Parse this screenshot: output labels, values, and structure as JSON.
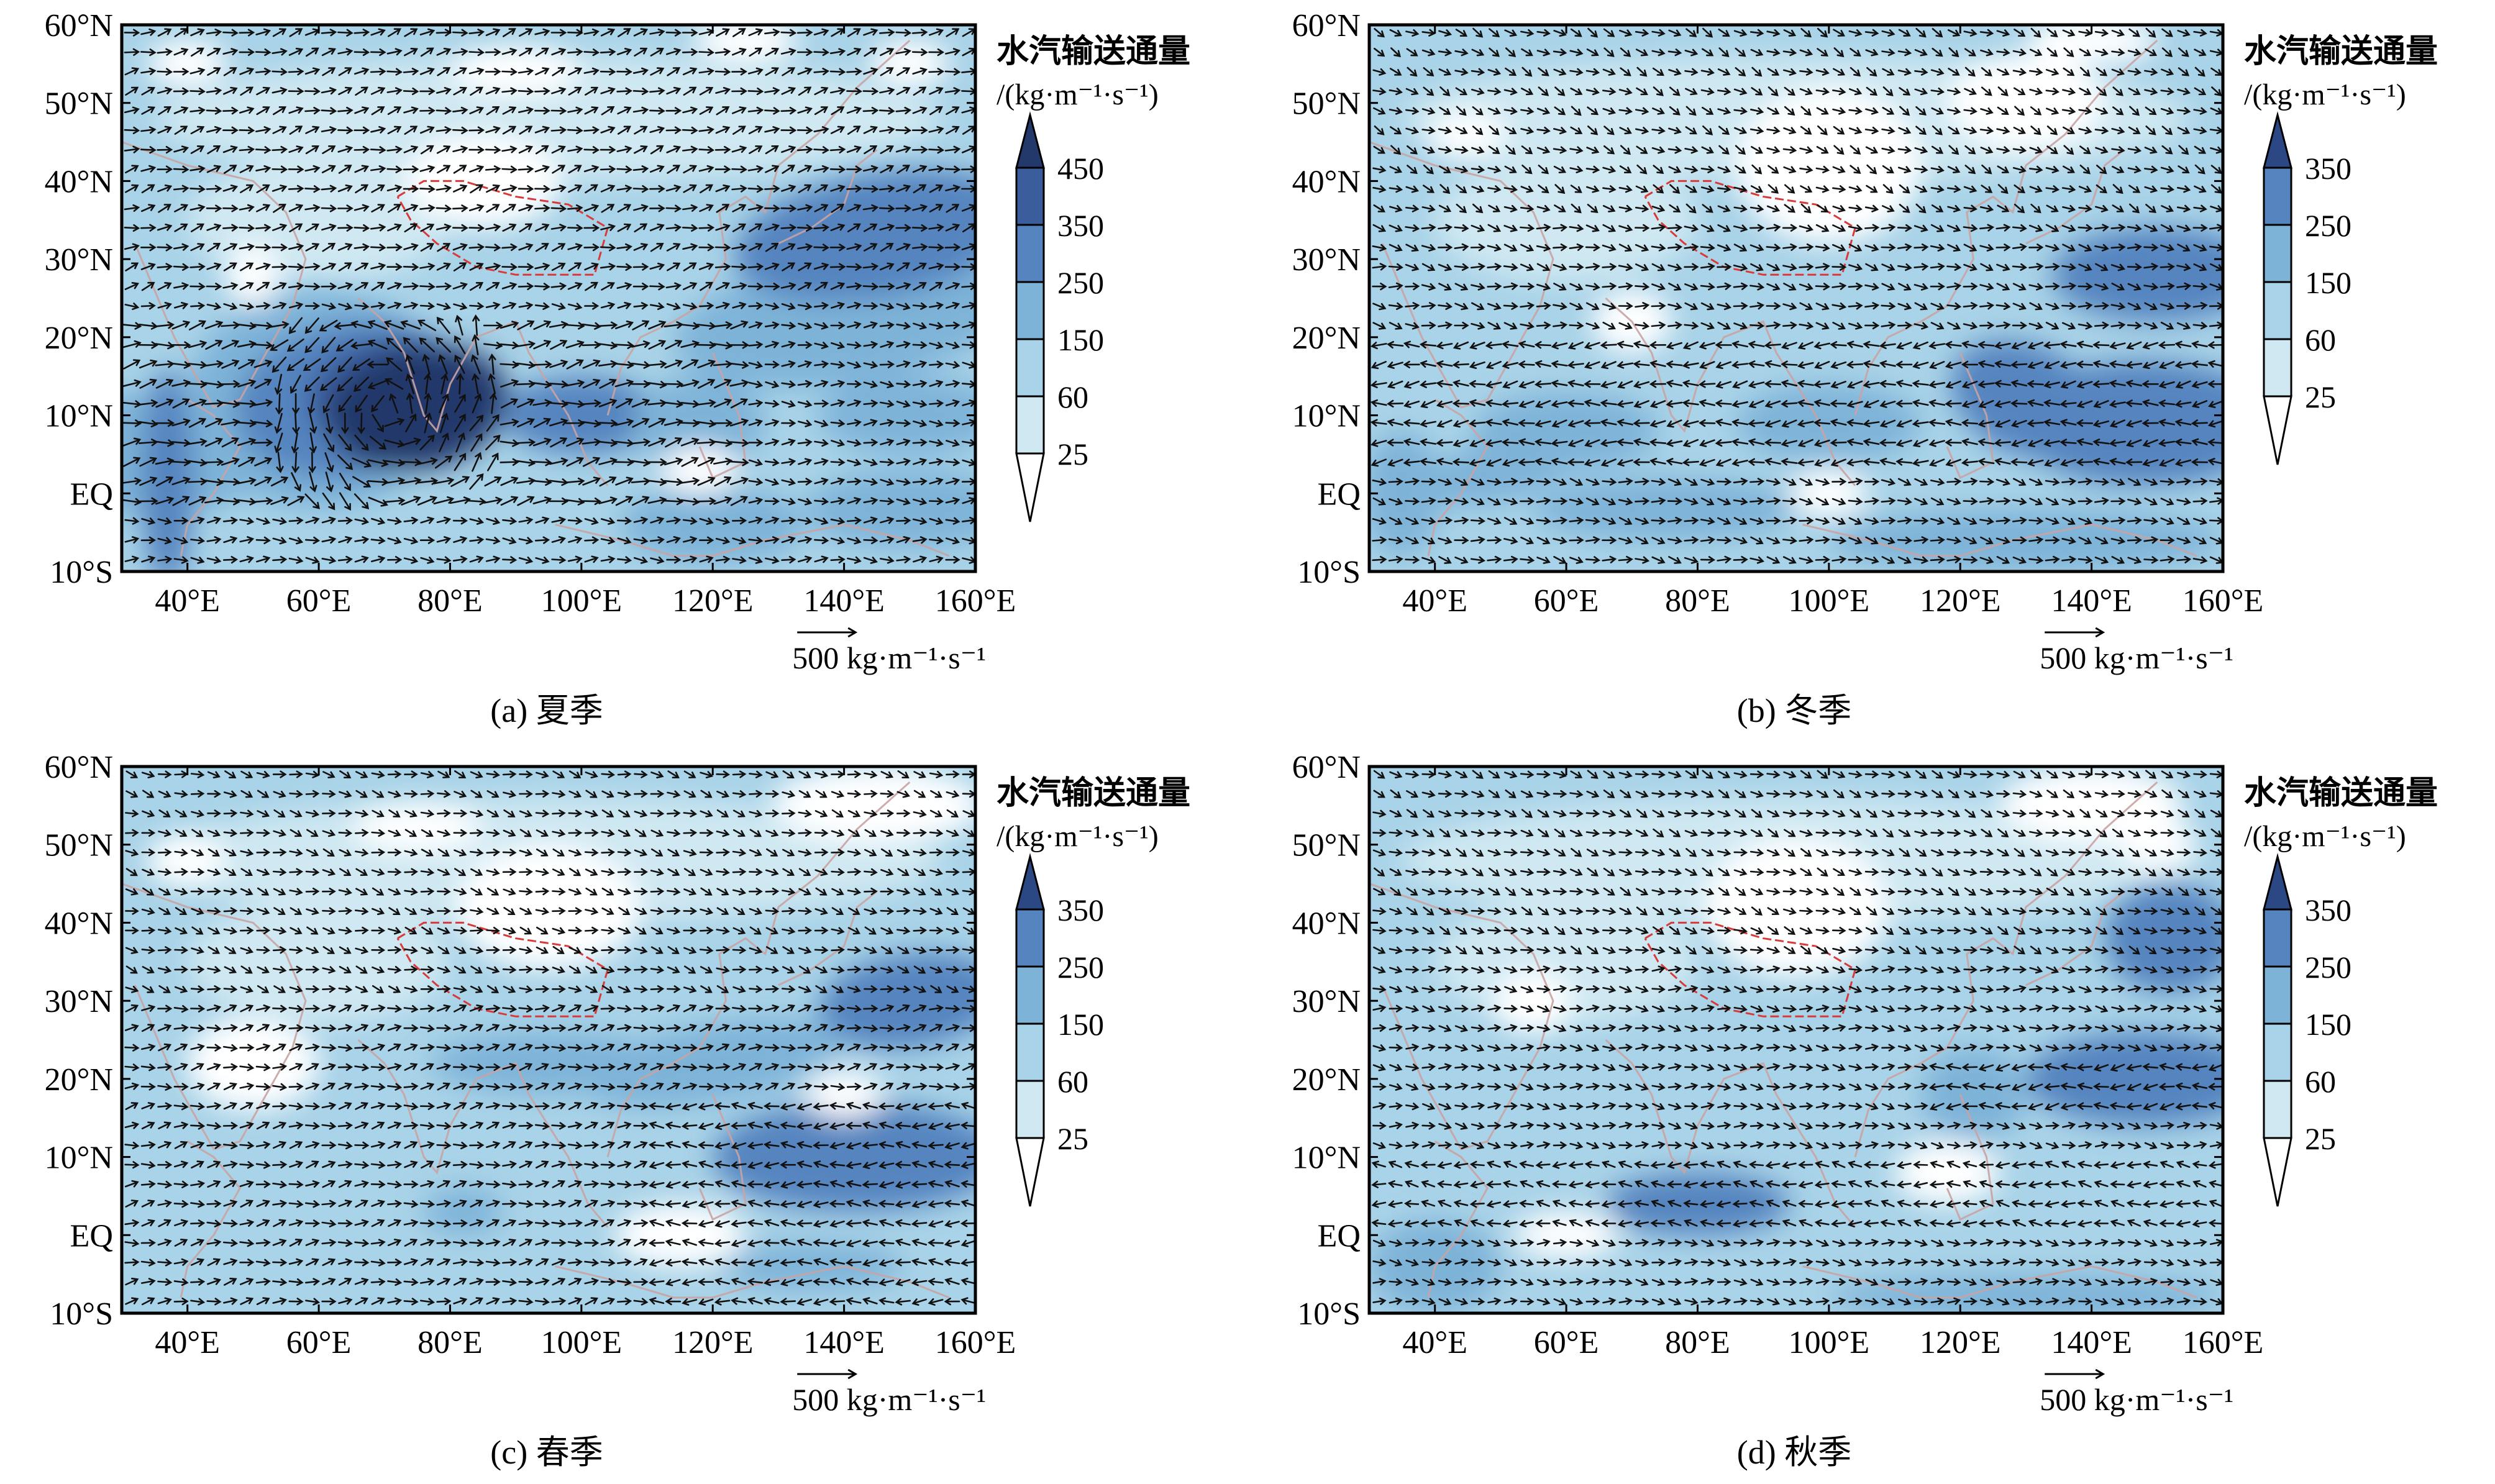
{
  "panels": [
    {
      "id": "a",
      "caption": "(a) 夏季",
      "colorbar_levels": [
        "25",
        "60",
        "150",
        "250",
        "350",
        "450"
      ],
      "fill_colors": [
        "#ffffff",
        "#cfe8f2",
        "#a9d3e8",
        "#7eb3d8",
        "#5584bf",
        "#3a5d9c",
        "#23386b"
      ]
    },
    {
      "id": "b",
      "caption": "(b) 冬季",
      "colorbar_levels": [
        "25",
        "60",
        "150",
        "250",
        "350"
      ],
      "fill_colors": [
        "#ffffff",
        "#cfe8f2",
        "#a9d3e8",
        "#7eb3d8",
        "#5584bf",
        "#2b4784"
      ]
    },
    {
      "id": "c",
      "caption": "(c) 春季",
      "colorbar_levels": [
        "25",
        "60",
        "150",
        "250",
        "350"
      ],
      "fill_colors": [
        "#ffffff",
        "#cfe8f2",
        "#a9d3e8",
        "#7eb3d8",
        "#5584bf",
        "#2b4784"
      ]
    },
    {
      "id": "d",
      "caption": "(d) 秋季",
      "colorbar_levels": [
        "25",
        "60",
        "150",
        "250",
        "350"
      ],
      "fill_colors": [
        "#ffffff",
        "#cfe8f2",
        "#a9d3e8",
        "#7eb3d8",
        "#5584bf",
        "#2b4784"
      ]
    }
  ],
  "axes": {
    "y_ticks": [
      "60°N",
      "50°N",
      "40°N",
      "30°N",
      "20°N",
      "10°N",
      "EQ",
      "10°S"
    ],
    "x_ticks": [
      "40°E",
      "60°E",
      "80°E",
      "100°E",
      "120°E",
      "140°E",
      "160°E"
    ]
  },
  "colorbar_title": "水汽输送通量",
  "colorbar_unit": "/(kg·m⁻¹·s⁻¹)",
  "reference_vector_label": "500 kg·m⁻¹·s⁻¹",
  "colors": {
    "vector": "#111111",
    "border": "#c9a3a3",
    "plateau": "#d83a3a"
  }
}
